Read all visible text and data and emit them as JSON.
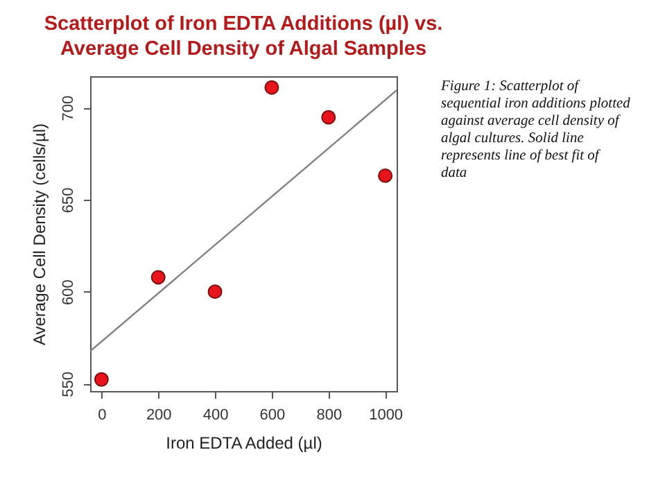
{
  "chart_data": {
    "type": "scatter",
    "title": "Scatterplot of Iron EDTA Additions (µl) vs. Average Cell Density of Algal Samples",
    "xlabel": "Iron EDTA Added (µl)",
    "ylabel": "Average Cell Density (cells/µl)",
    "x": [
      0,
      200,
      400,
      600,
      800,
      1000
    ],
    "series": [
      {
        "color": "#e8141c",
        "marker": "circle",
        "values": [
          552.3,
          607.8,
          600,
          710.9,
          694.7,
          663
        ]
      },
      {
        "type": "line",
        "color": "#808080",
        "marker": "none",
        "line_style": "solid",
        "x": [
          -40,
          1040
        ],
        "values": [
          567.6,
          709.4
        ]
      }
    ],
    "xlim": [
      -40,
      1040
    ],
    "ylim": [
      546,
      717
    ],
    "xticks": [
      0,
      200,
      400,
      600,
      800,
      1000
    ],
    "yticks": [
      550,
      600,
      650,
      700
    ],
    "grid": false,
    "annotations": [
      "Figure 1: Scatterplot of sequential iron additions plotted against average cell density of algal cultures. Solid line represents line of best fit of data"
    ]
  }
}
